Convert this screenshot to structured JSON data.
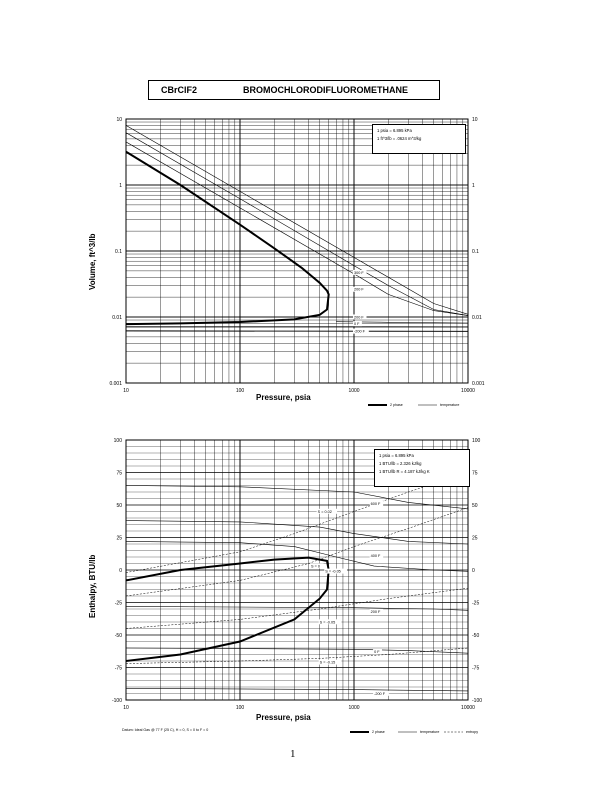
{
  "header": {
    "formula": "CBrClF2",
    "name": "BROMOCHLORODIFLUOROMETHANE"
  },
  "page_number": "1",
  "footnote": "Datum: Ideal Gas @ 77 F (25 C),  H = 0,  S = 0 to F = 0",
  "chart_data": [
    {
      "type": "line",
      "title": "",
      "xlabel": "Pressure,  psia",
      "ylabel": "Volume,  ft^3/lb",
      "xscale": "log",
      "yscale": "log",
      "xlim": [
        10,
        10000
      ],
      "ylim": [
        0.001,
        10
      ],
      "grid": true,
      "x_ticks": [
        "10",
        "100",
        "1000",
        "10000"
      ],
      "y_ticks": [
        "10",
        "1",
        "0.1",
        "0.01",
        "0.001"
      ],
      "y_ticks_right": [
        "10",
        "1",
        "0.1",
        "0.01",
        "0.001"
      ],
      "conversion_box": [
        "1 psia  =  6.895 kPa",
        "1 ft^3/lb  =  .0624 m^3/kg"
      ],
      "legend": [
        "2 phase",
        "temperature"
      ],
      "legend_placement": "bottom-right",
      "series": [
        {
          "kind": "2 phase",
          "x": [
            10,
            30,
            100,
            200,
            350,
            500,
            580,
            600,
            580,
            500,
            300,
            100,
            30,
            10
          ],
          "values": [
            3.2,
            1.0,
            0.25,
            0.11,
            0.055,
            0.033,
            0.025,
            0.022,
            0.013,
            0.0108,
            0.0092,
            0.0084,
            0.008,
            0.0078
          ]
        },
        {
          "kind": "temperature",
          "label": "",
          "x": [
            10,
            100,
            1000,
            1100,
            2000,
            5000,
            10000
          ],
          "values": [
            4.5,
            0.45,
            0.045,
            0.041,
            0.022,
            0.0125,
            0.0105
          ]
        },
        {
          "kind": "temperature",
          "label": "300 F",
          "x": [
            10,
            100,
            1000,
            2000,
            5000,
            10000
          ],
          "values": [
            6.2,
            0.62,
            0.06,
            0.03,
            0.013,
            0.0105
          ]
        },
        {
          "kind": "temperature",
          "label": "200 F",
          "x": [
            10,
            100,
            1000,
            5000,
            10000
          ],
          "values": [
            8.0,
            0.8,
            0.08,
            0.016,
            0.011
          ]
        },
        {
          "kind": "temperature",
          "label": "200 F",
          "x": [
            700,
            2000,
            10000
          ],
          "values": [
            0.0085,
            0.0083,
            0.0081
          ]
        },
        {
          "kind": "temperature",
          "label": "0 F",
          "x": [
            10,
            10000
          ],
          "values": [
            0.0072,
            0.0071
          ]
        },
        {
          "kind": "temperature",
          "label": "-200 F",
          "x": [
            10,
            10000
          ],
          "values": [
            0.0062,
            0.0061
          ]
        }
      ],
      "labels": [
        {
          "text": "300 F",
          "x": 1000,
          "y": 0.045
        },
        {
          "text": "200 F",
          "x": 1000,
          "y": 0.025
        },
        {
          "text": "200 F",
          "x": 1000,
          "y": 0.0095
        },
        {
          "text": "0 F",
          "x": 1000,
          "y": 0.0075
        },
        {
          "text": "-200 F",
          "x": 1000,
          "y": 0.0058
        }
      ]
    },
    {
      "type": "line",
      "title": "",
      "xlabel": "Pressure,  psia",
      "ylabel": "Enthalpy,  BTU/lb",
      "xscale": "log",
      "yscale": "linear",
      "xlim": [
        10,
        10000
      ],
      "ylim": [
        -100,
        100
      ],
      "grid": true,
      "x_ticks": [
        "10",
        "100",
        "1000",
        "10000"
      ],
      "y_ticks": [
        "100",
        "75",
        "50",
        "25",
        "0",
        "-25",
        "-50",
        "-75",
        "-100"
      ],
      "y_ticks_right": [
        "100",
        "75",
        "50",
        "25",
        "0",
        "-25",
        "-50",
        "-75",
        "-100"
      ],
      "conversion_box": [
        "1 psia  =  6.895 kPa",
        "1 BTU/lb  =  2.326 kJ/kg",
        "1 BTU/lb R  =  4.187 kJ/kg K"
      ],
      "legend": [
        "2 phase",
        "temperature",
        "entropy"
      ],
      "legend_placement": "bottom-right",
      "series": [
        {
          "kind": "2 phase",
          "x": [
            10,
            30,
            100,
            200,
            400,
            580,
            600,
            580,
            500,
            300,
            100,
            30,
            10
          ],
          "values": [
            -8,
            0,
            5,
            8,
            9.5,
            7,
            0,
            -15,
            -22,
            -38,
            -55,
            -65,
            -70
          ]
        },
        {
          "kind": "temperature",
          "label": "600 F",
          "x": [
            10,
            100,
            1000,
            3000,
            10000
          ],
          "values": [
            65,
            64,
            60,
            52,
            47
          ]
        },
        {
          "kind": "temperature",
          "label": "",
          "x": [
            10,
            100,
            500,
            1000,
            3000,
            10000
          ],
          "values": [
            38,
            37,
            33,
            28,
            22,
            20
          ]
        },
        {
          "kind": "temperature",
          "label": "400 F",
          "x": [
            10,
            100,
            300,
            700,
            1500,
            5000,
            10000
          ],
          "values": [
            22,
            21,
            18,
            10,
            3,
            0,
            -1
          ]
        },
        {
          "kind": "temperature",
          "label": "200 F",
          "x": [
            10,
            1000,
            5000,
            10000
          ],
          "values": [
            -28,
            -29,
            -30,
            -31
          ]
        },
        {
          "kind": "temperature",
          "label": "0 F",
          "x": [
            10,
            1000,
            3000,
            10000
          ],
          "values": [
            -60,
            -61,
            -62,
            -64
          ]
        },
        {
          "kind": "temperature",
          "label": "-200 F",
          "x": [
            10,
            1000,
            10000
          ],
          "values": [
            -91,
            -92,
            -93
          ]
        },
        {
          "kind": "entropy",
          "label": "S = 0.02",
          "x": [
            10,
            100,
            300,
            1000,
            3000,
            10000
          ],
          "values": [
            -2,
            14,
            28,
            45,
            60,
            75
          ]
        },
        {
          "kind": "entropy",
          "label": "S = 0",
          "x": [
            10,
            100,
            400,
            1000,
            3000,
            10000
          ],
          "values": [
            -20,
            -8,
            5,
            18,
            32,
            48
          ]
        },
        {
          "kind": "entropy",
          "label": "S = -0.05",
          "x": [
            10,
            100,
            500,
            2000,
            10000
          ],
          "values": [
            -45,
            -38,
            -30,
            -22,
            -14
          ]
        },
        {
          "kind": "entropy",
          "label": "S = -0.15",
          "x": [
            10,
            100,
            500,
            2000,
            10000
          ],
          "values": [
            -72,
            -70,
            -68,
            -65,
            -60
          ]
        }
      ],
      "labels": [
        {
          "text": "S = 0.02",
          "x": 480,
          "y": 44
        },
        {
          "text": "600 F",
          "x": 1400,
          "y": 50
        },
        {
          "text": "S = 0",
          "x": 420,
          "y": 2
        },
        {
          "text": "400 F",
          "x": 1400,
          "y": 10
        },
        {
          "text": "S = -0.05",
          "x": 560,
          "y": -2
        },
        {
          "text": "200 F",
          "x": 1400,
          "y": -33
        },
        {
          "text": "S = -0.05",
          "x": 500,
          "y": -41
        },
        {
          "text": "0 F",
          "x": 1500,
          "y": -64
        },
        {
          "text": "S = -0.15",
          "x": 500,
          "y": -72
        },
        {
          "text": "-200 F",
          "x": 1500,
          "y": -96
        }
      ]
    }
  ]
}
